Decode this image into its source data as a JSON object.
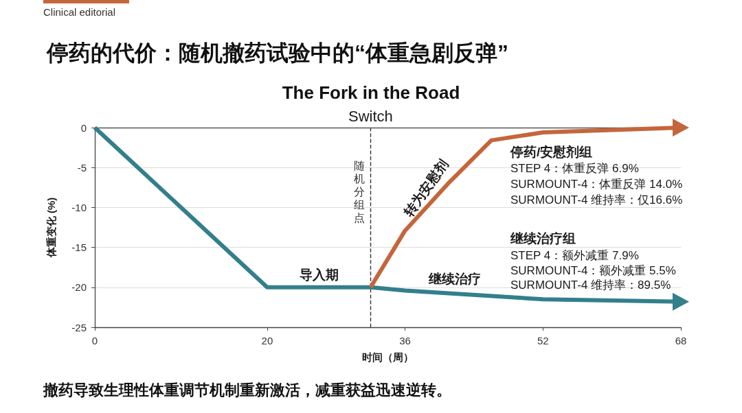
{
  "chart_data": {
    "type": "line",
    "title": "停药的代价：随机撤药试验中的“体重急剧反弹”",
    "subtitle": "The Fork in the Road",
    "xlabel": "时间（周）",
    "ylabel": "体重变化 (%)",
    "series": [
      {
        "color": "#337f8c",
        "x": [
          0,
          20,
          32,
          36,
          52,
          68
        ],
        "values": [
          0,
          -20,
          -20,
          -20.4,
          -21.5,
          -21.8
        ]
      },
      {
        "color": "#c4663c",
        "x": [
          32,
          36,
          41,
          46,
          52,
          68
        ],
        "values": [
          -20,
          -12.9,
          -7,
          -1.6,
          -0.6,
          0
        ]
      }
    ],
    "xlim": [
      0,
      68
    ],
    "xticks": [
      0,
      20,
      36,
      52,
      68
    ],
    "ylim": [
      -25,
      0
    ],
    "yticks": [
      -25,
      -20,
      -15,
      -10,
      -5,
      0
    ],
    "grid": "y",
    "marker": "none",
    "line_style": "solid",
    "ref_lines": [
      {
        "axis": "x",
        "value": 32,
        "label": "Switch",
        "line_style": "dashed",
        "color": "#333333"
      },
      {
        "axis": "y",
        "value": 0,
        "label": null,
        "line_style": "solid",
        "color": "#555555"
      }
    ],
    "annotations": [
      "Clinical editorial",
      "随机分组点",
      "转为安慰剂",
      "导入期",
      "继续治疗",
      "停药/安慰剂组",
      "STEP 4：体重反弹 6.9%",
      "SURMOUNT-4：体重反弹 14.0%",
      "SURMOUNT-4 维持率：仅16.6%",
      "继续治疗组",
      "STEP 4：额外减重 7.9%",
      "SURMOUNT-4：额外减重 5.5%",
      "SURMOUNT-4 维持率：89.5%",
      "撤药导致生理性体重调节机制重新激活，减重获益迅速逆转。"
    ]
  }
}
